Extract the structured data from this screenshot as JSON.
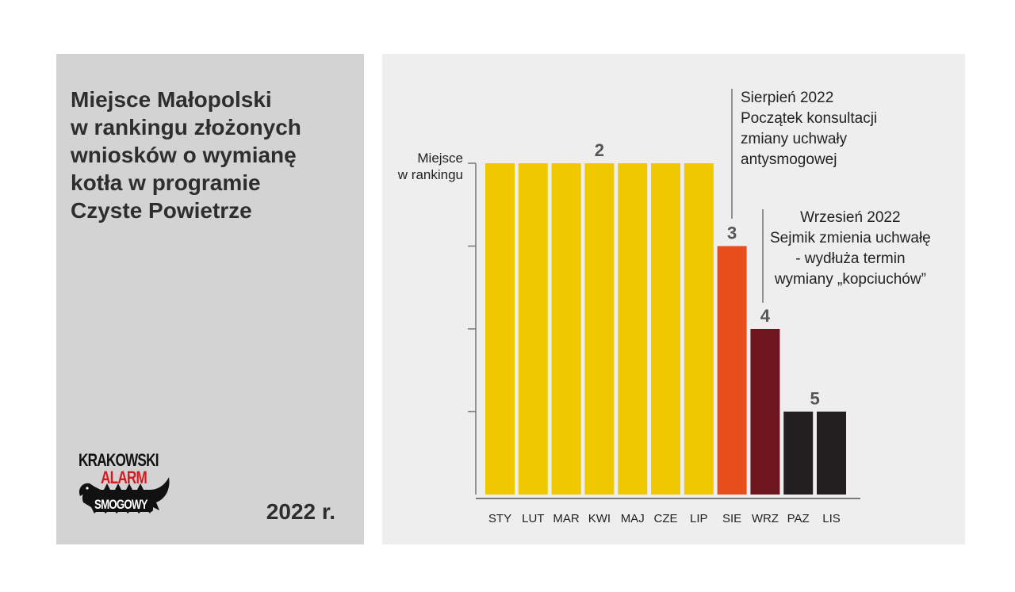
{
  "panel": {
    "title_lines": [
      "Miejsce Małopolski",
      "w rankingu złożonych",
      "wniosków o wymianę",
      "kotła w programie",
      "Czyste Powietrze"
    ],
    "year": "2022 r."
  },
  "logo": {
    "lines": [
      "KRAKOWSKI",
      "ALARM",
      "SMOGOWY"
    ]
  },
  "annotations": {
    "august": [
      "Sierpień 2022",
      "Początek konsultacji",
      "zmiany uchwały",
      "antysmogowej"
    ],
    "september": [
      "Wrzesień 2022",
      "Sejmik zmienia uchwałę",
      "- wydłuża termin",
      "wymiany „kopciuchów”"
    ]
  },
  "colors": {
    "yellow": "#f0c800",
    "orange": "#e84e1b",
    "maroon": "#6e1520",
    "black": "#231f20"
  },
  "chart_data": {
    "type": "bar",
    "ylabel_lines": [
      "Miejsce",
      "w rankingu"
    ],
    "categories": [
      "STY",
      "LUT",
      "MAR",
      "KWI",
      "MAJ",
      "CZE",
      "LIP",
      "SIE",
      "WRZ",
      "PAZ",
      "LIS"
    ],
    "values": [
      2,
      2,
      2,
      2,
      2,
      2,
      2,
      3,
      4,
      5,
      5
    ],
    "bar_colors": [
      "#f0c800",
      "#f0c800",
      "#f0c800",
      "#f0c800",
      "#f0c800",
      "#f0c800",
      "#f0c800",
      "#e84e1b",
      "#6e1520",
      "#231f20",
      "#231f20"
    ],
    "value_labels": [
      {
        "text": "2",
        "category_index": 3,
        "value": 2
      },
      {
        "text": "3",
        "category_index": 7,
        "value": 3
      },
      {
        "text": "4",
        "category_index": 8,
        "value": 4
      },
      {
        "text": "5",
        "category_index": 9.5,
        "value": 5
      }
    ],
    "y_ticks": [
      2,
      3,
      4,
      5
    ],
    "ylim": [
      2,
      6
    ],
    "y_inverted": true,
    "grid": false
  }
}
